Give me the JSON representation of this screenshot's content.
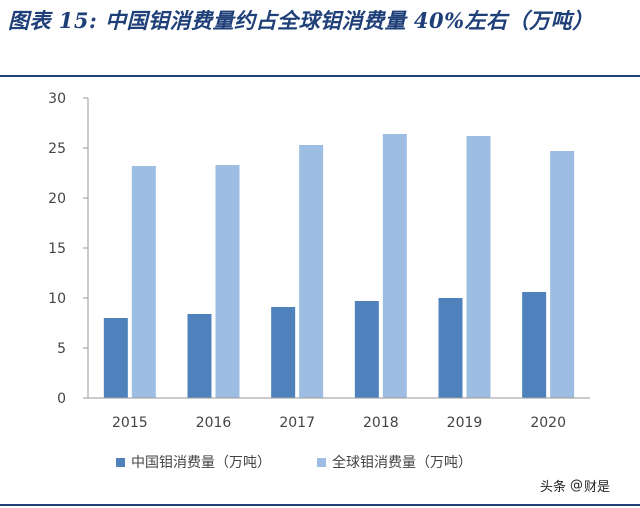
{
  "title": "图表 15: 中国钼消费量约占全球钼消费量 40%左右（万吨）",
  "watermark": {
    "brand": "头条",
    "at": "@",
    "account": "财是"
  },
  "colors": {
    "title": "#1e3f78",
    "series_china": "#4f81bd",
    "series_global": "#9dbde3",
    "axis": "#9a9a9a",
    "text": "#444444"
  },
  "chart_data": {
    "type": "bar",
    "title": "",
    "xlabel": "",
    "ylabel": "",
    "categories": [
      "2015",
      "2016",
      "2017",
      "2018",
      "2019",
      "2020"
    ],
    "series": [
      {
        "name": "中国钼消费量（万吨）",
        "values": [
          8.0,
          8.4,
          9.1,
          9.7,
          10.0,
          10.6
        ]
      },
      {
        "name": "全球钼消费量（万吨）",
        "values": [
          23.2,
          23.3,
          25.3,
          26.4,
          26.2,
          24.7
        ]
      }
    ],
    "ylim": [
      0,
      30
    ],
    "yticks": [
      0,
      5,
      10,
      15,
      20,
      25,
      30
    ],
    "grid": false,
    "legend": "bottom"
  }
}
